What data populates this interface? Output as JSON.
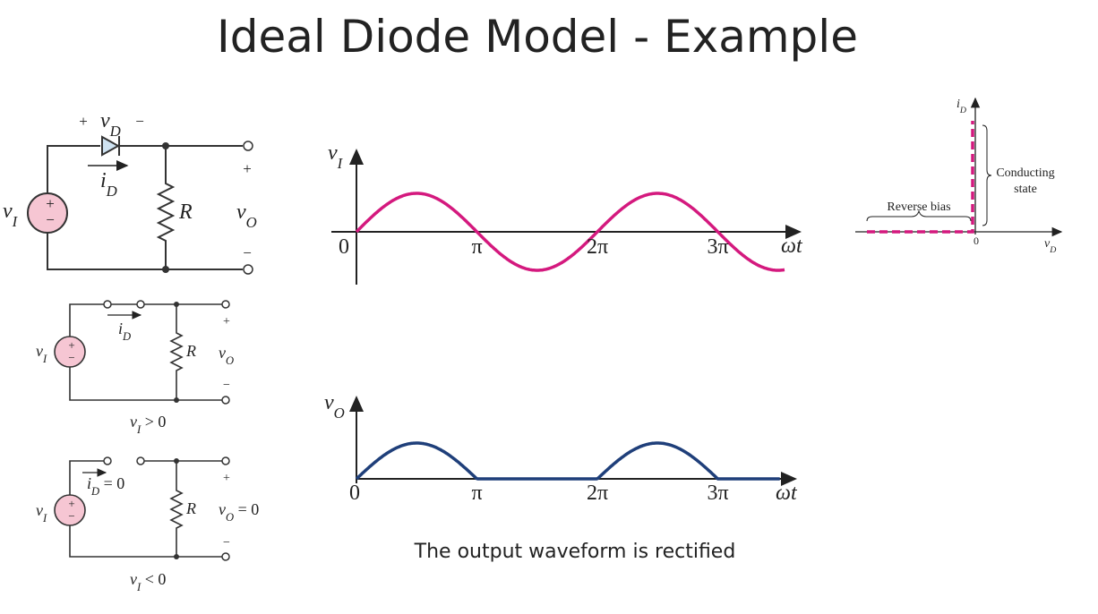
{
  "title": "Ideal Diode Model - Example",
  "caption": "The output waveform is rectified",
  "circuit_main": {
    "plus_d": "+",
    "v_d": {
      "base": "v",
      "sub": "D"
    },
    "minus_d": "−",
    "i_d": {
      "base": "i",
      "sub": "D"
    },
    "v_i": {
      "base": "v",
      "sub": "I"
    },
    "src_plus": "+",
    "src_minus": "−",
    "r": "R",
    "v_o": {
      "base": "v",
      "sub": "O"
    },
    "out_plus": "+",
    "out_minus": "−"
  },
  "circuit_on": {
    "i_d": {
      "base": "i",
      "sub": "D"
    },
    "v_i": {
      "base": "v",
      "sub": "I"
    },
    "src_plus": "+",
    "src_minus": "−",
    "r": "R",
    "v_o": {
      "base": "v",
      "sub": "O"
    },
    "out_plus": "+",
    "out_minus": "−",
    "condition": {
      "base": "v",
      "sub": "I",
      "tail": " > 0"
    }
  },
  "circuit_off": {
    "i_d": {
      "base": "i",
      "sub": "D",
      "tail": " = 0"
    },
    "v_i": {
      "base": "v",
      "sub": "I"
    },
    "src_plus": "+",
    "src_minus": "−",
    "r": "R",
    "v_o": {
      "base": "v",
      "sub": "O",
      "tail": " = 0"
    },
    "out_plus": "+",
    "out_minus": "−",
    "condition": {
      "base": "v",
      "sub": "I",
      "tail": " < 0"
    }
  },
  "graph_input": {
    "y_label": {
      "base": "v",
      "sub": "I"
    },
    "ticks": [
      "0",
      "π",
      "2π",
      "3π"
    ],
    "x_label": "ωt"
  },
  "graph_output": {
    "y_label": {
      "base": "v",
      "sub": "O"
    },
    "ticks": [
      "0",
      "π",
      "2π",
      "3π"
    ],
    "x_label": "ωt"
  },
  "characteristic": {
    "y_label": {
      "base": "i",
      "sub": "D"
    },
    "x_label": {
      "base": "v",
      "sub": "D"
    },
    "origin": "0",
    "conducting": [
      "Conducting",
      "state"
    ],
    "reverse": "Reverse bias"
  }
}
